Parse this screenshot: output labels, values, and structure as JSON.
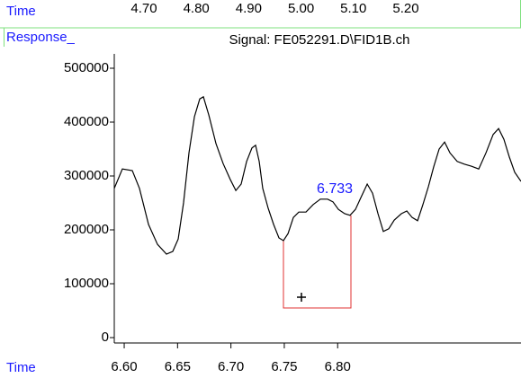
{
  "chart_data": {
    "type": "line",
    "title": "Signal: FE052291.D\\FID1B.ch",
    "x_label": "Time",
    "top_label": "Time",
    "y_label": "Response_",
    "annotation": "6.733",
    "color": "#000000",
    "x": [
      6.5907,
      6.5983,
      6.6076,
      6.6143,
      6.6228,
      6.6312,
      6.6396,
      6.6455,
      6.6506,
      6.6556,
      6.6607,
      6.6658,
      6.6708,
      6.6742,
      6.6793,
      6.686,
      6.6927,
      6.6995,
      6.7046,
      6.7096,
      6.7147,
      6.7197,
      6.7231,
      6.7265,
      6.7298,
      6.7349,
      6.74,
      6.745,
      6.7492,
      6.7535,
      6.7585,
      6.7636,
      6.7703,
      6.7771,
      6.7838,
      6.7906,
      6.7956,
      6.8007,
      6.8066,
      6.8116,
      6.8167,
      6.8218,
      6.8277,
      6.8327,
      6.8378,
      6.8428,
      6.8479,
      6.853,
      6.8597,
      6.8648,
      6.8698,
      6.8749,
      6.8799,
      6.885,
      6.89,
      6.8951,
      6.9002,
      6.9052,
      6.912,
      6.9187,
      6.9255,
      6.9322,
      6.939,
      6.9457,
      6.9508,
      6.9558,
      6.9609,
      6.9659,
      6.9718
    ],
    "values": [
      277000,
      313000,
      310000,
      277000,
      210000,
      173000,
      155000,
      160000,
      183000,
      250000,
      343000,
      410000,
      443000,
      447000,
      413000,
      360000,
      323000,
      293000,
      273000,
      285000,
      327000,
      352000,
      357000,
      327000,
      277000,
      240000,
      210000,
      185000,
      180000,
      193000,
      223000,
      233000,
      233000,
      247000,
      257000,
      257000,
      252000,
      238000,
      230000,
      227000,
      238000,
      260000,
      285000,
      268000,
      230000,
      197000,
      202000,
      218000,
      230000,
      235000,
      223000,
      217000,
      247000,
      280000,
      317000,
      350000,
      363000,
      343000,
      327000,
      322000,
      318000,
      313000,
      343000,
      377000,
      388000,
      368000,
      335000,
      307000,
      290000
    ],
    "xlim": [
      6.5907,
      6.9718
    ],
    "ylim": [
      -10000,
      526667
    ],
    "xticks": [
      {
        "value": 6.6,
        "label": "6.60"
      },
      {
        "value": 6.65,
        "label": "6.65"
      },
      {
        "value": 6.7,
        "label": "6.70"
      },
      {
        "value": 6.75,
        "label": "6.75"
      },
      {
        "value": 6.8,
        "label": "6.80"
      }
    ],
    "yticks": [
      0,
      100000,
      200000,
      300000,
      400000,
      500000
    ],
    "x2lim": [
      4.6433,
      5.42
    ],
    "x2ticks": [
      {
        "value": 4.7,
        "label": "4.70"
      },
      {
        "value": 4.8,
        "label": "4.80"
      },
      {
        "value": 4.9,
        "label": "4.90"
      },
      {
        "value": 5.0,
        "label": "5.00"
      },
      {
        "value": 5.1,
        "label": "5.10"
      },
      {
        "value": 5.2,
        "label": "5.20"
      }
    ]
  }
}
